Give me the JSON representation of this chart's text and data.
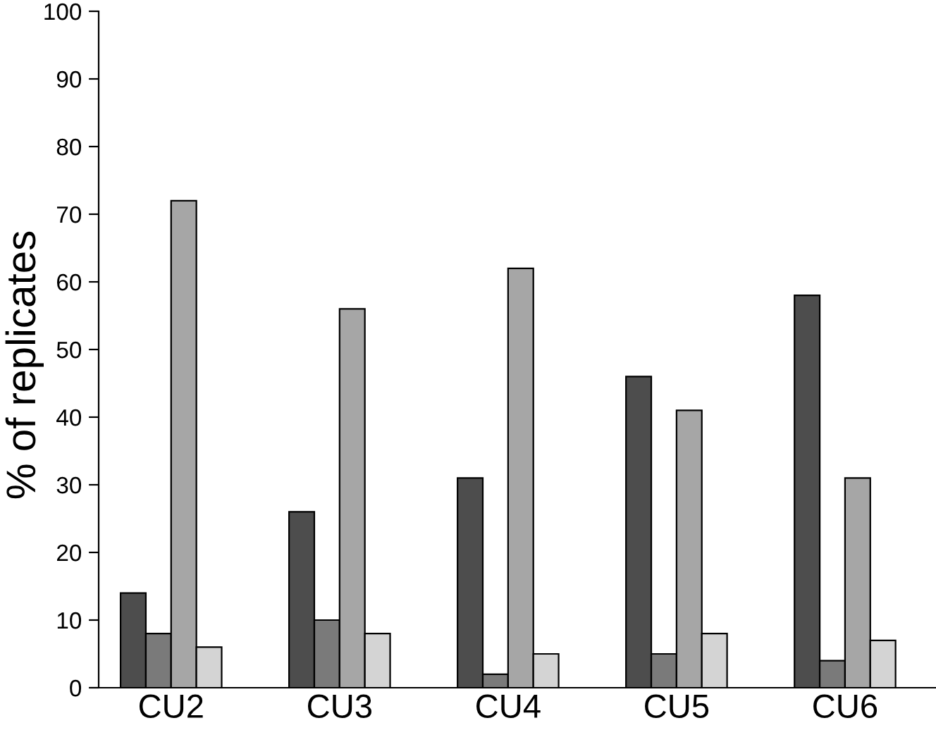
{
  "chart_data": {
    "type": "bar",
    "ylabel": "% of replicates",
    "categories": [
      "CU2",
      "CU3",
      "CU4",
      "CU5",
      "CU6"
    ],
    "series": [
      {
        "color": "#4d4d4d",
        "values": [
          14,
          26,
          31,
          46,
          58
        ]
      },
      {
        "color": "#7a7a7a",
        "values": [
          8,
          10,
          2,
          5,
          4
        ]
      },
      {
        "color": "#a6a6a6",
        "values": [
          72,
          56,
          62,
          41,
          31
        ]
      },
      {
        "color": "#d4d4d4",
        "values": [
          6,
          8,
          5,
          8,
          7
        ]
      }
    ],
    "ylim": [
      0,
      100
    ],
    "yticks": [
      0,
      10,
      20,
      30,
      40,
      50,
      60,
      70,
      80,
      90,
      100
    ],
    "grid": false,
    "legend": false
  }
}
